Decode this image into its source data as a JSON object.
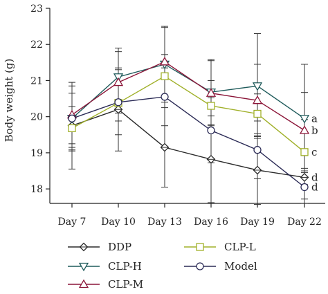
{
  "chart_data": {
    "type": "line",
    "ylabel": "Body weight (g)",
    "xlabel": "",
    "categories": [
      "Day 7",
      "Day 10",
      "Day 13",
      "Day 16",
      "Day 19",
      "Day 22"
    ],
    "yticks": [
      18,
      19,
      20,
      21,
      22,
      23
    ],
    "ylim": [
      17.6,
      23
    ],
    "grid": false,
    "legend_position": "bottom",
    "series": [
      {
        "name": "DDP",
        "color": "#2a2a2a",
        "marker": "diamond",
        "values": [
          19.75,
          20.2,
          19.15,
          18.82,
          18.52,
          18.32
        ],
        "errors": [
          1.2,
          1.15,
          1.1,
          1.2,
          0.95,
          0.6
        ],
        "sig_label": "d"
      },
      {
        "name": "CLP-H",
        "color": "#1f5b5b",
        "marker": "triangle-down",
        "values": [
          19.95,
          21.1,
          21.45,
          20.68,
          20.85,
          19.95
        ],
        "errors": [
          0.9,
          0.8,
          1.05,
          0.9,
          1.45,
          1.5
        ],
        "sig_label": "a"
      },
      {
        "name": "CLP-M",
        "color": "#8b1538",
        "marker": "triangle-up",
        "values": [
          20.05,
          20.95,
          21.52,
          20.65,
          20.45,
          19.62
        ],
        "errors": [
          0.9,
          0.85,
          0.95,
          0.9,
          1.0,
          1.05
        ],
        "sig_label": "b"
      },
      {
        "name": "CLP-L",
        "color": "#a0b029",
        "marker": "square",
        "values": [
          19.68,
          20.38,
          21.12,
          20.3,
          20.08,
          19.02
        ],
        "errors": [
          0.6,
          0.5,
          0.6,
          0.7,
          0.55,
          0.9
        ],
        "sig_label": "c"
      },
      {
        "name": "Model",
        "color": "#2a2a55",
        "marker": "circle",
        "values": [
          19.95,
          20.4,
          20.55,
          19.62,
          19.08,
          18.05
        ],
        "errors": [
          0.7,
          0.9,
          0.8,
          0.9,
          0.8,
          0.45
        ],
        "sig_label": "d"
      }
    ]
  }
}
